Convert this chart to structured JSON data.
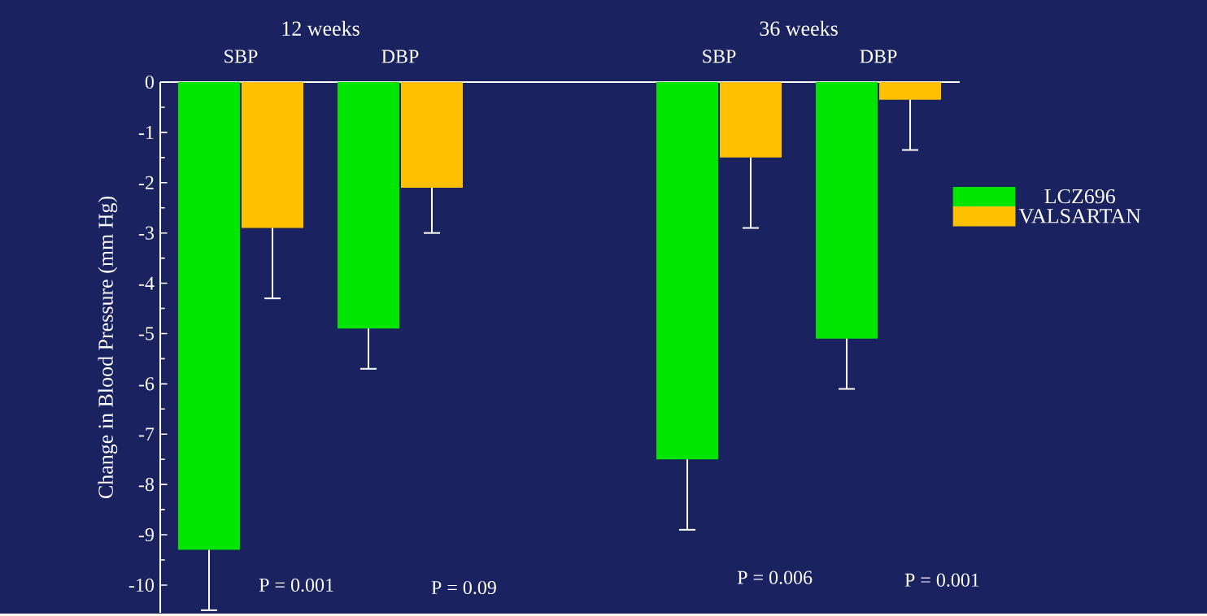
{
  "chart_data": {
    "type": "bar",
    "ylabel": "Change in Blood Pressure (mm Hg)",
    "categories": [
      "SBP",
      "DBP",
      null,
      "SBP",
      "DBP"
    ],
    "series": [
      {
        "name": "LCZ696",
        "color": "#00e600",
        "values": [
          -9.3,
          -4.9,
          null,
          -7.5,
          -5.1
        ],
        "errors": [
          [
            -10.5,
            -9.3
          ],
          [
            -5.7,
            -4.9
          ],
          null,
          [
            -8.9,
            -7.5
          ],
          [
            -6.1,
            -5.1
          ]
        ]
      },
      {
        "name": "VALSARTAN",
        "color": "#ffc000",
        "values": [
          -2.9,
          -2.1,
          null,
          -1.5,
          -0.35
        ],
        "errors": [
          [
            -4.3,
            -2.9
          ],
          [
            -3.0,
            -2.1
          ],
          null,
          [
            -2.9,
            -1.5
          ],
          [
            -1.35,
            -0.35
          ]
        ]
      }
    ],
    "ylim": [
      -10.55,
      0
    ],
    "yticks": [
      0,
      -1,
      -2,
      -3,
      -4,
      -5,
      -6,
      -7,
      -8,
      -9,
      -10
    ],
    "legend": "right",
    "annotations": [
      "12 weeks",
      "36 weeks",
      "P = 0.001",
      "P = 0.09",
      "P = 0.006",
      "P = 0.001"
    ]
  }
}
